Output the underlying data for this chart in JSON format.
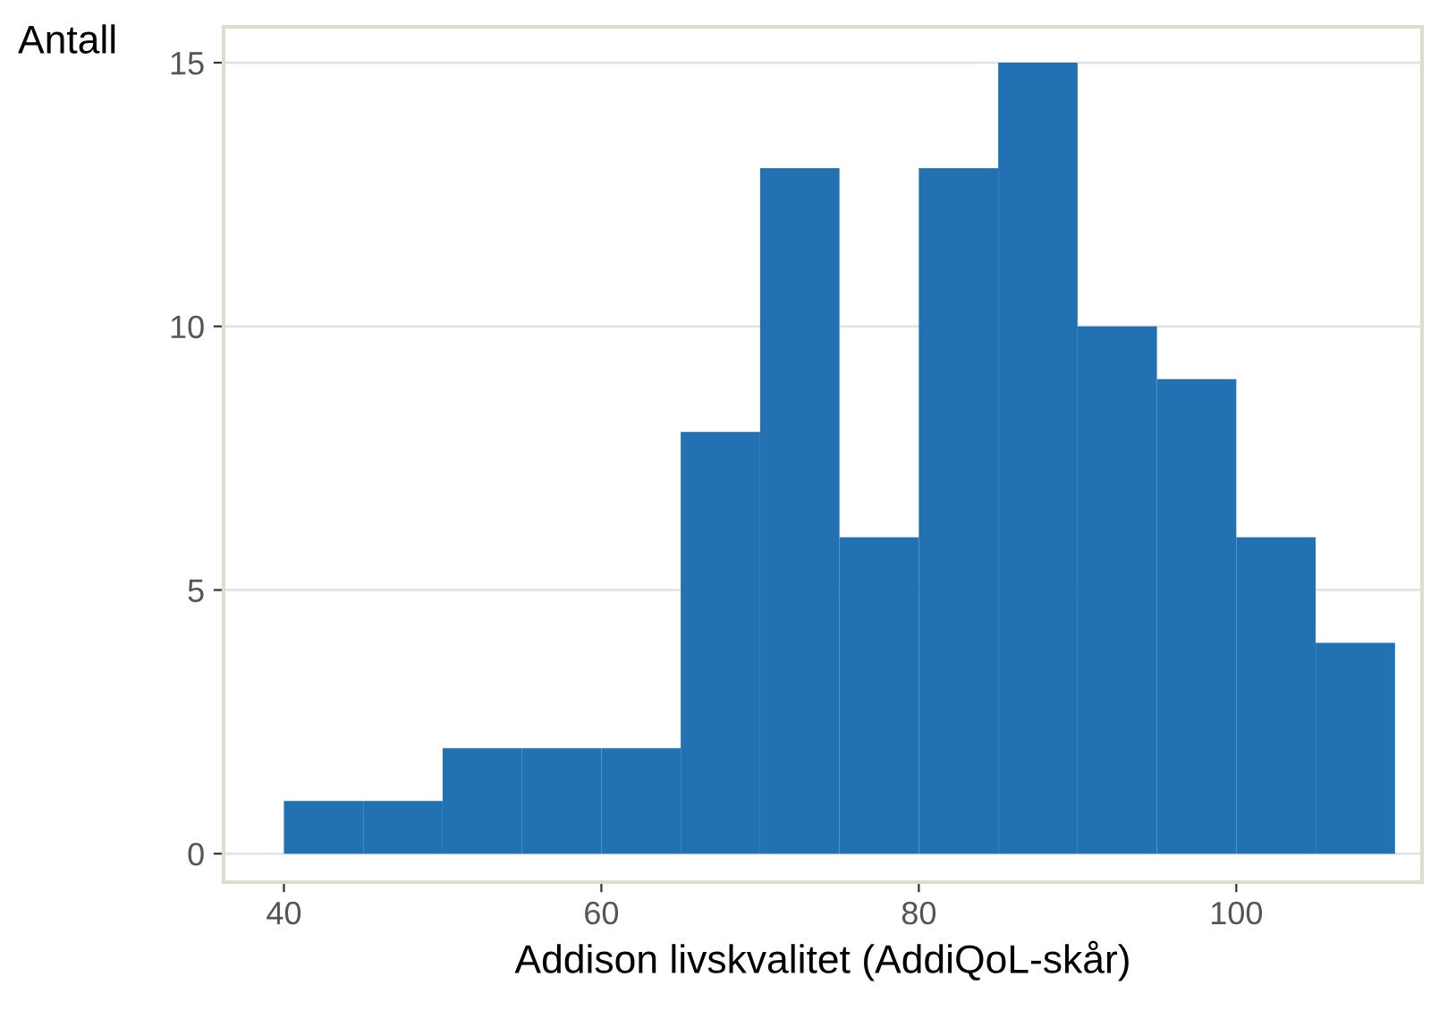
{
  "chart_data": {
    "type": "histogram",
    "xlabel": "Addison livskvalitet (AddiQoL-skår)",
    "ylabel": "Antall",
    "bins": [
      40,
      45,
      50,
      55,
      60,
      65,
      70,
      75,
      80,
      85,
      90,
      95,
      100,
      105,
      110
    ],
    "values": [
      1,
      1,
      2,
      2,
      2,
      8,
      13,
      6,
      13,
      15,
      10,
      9,
      6,
      4
    ],
    "color": "#2271b3",
    "xlim": [
      36.2,
      111.7
    ],
    "ylim": [
      -0.54,
      15.68
    ],
    "xticks": [
      40,
      60,
      80,
      100
    ],
    "yticks": [
      0,
      5,
      10,
      15
    ],
    "grid": "y"
  }
}
